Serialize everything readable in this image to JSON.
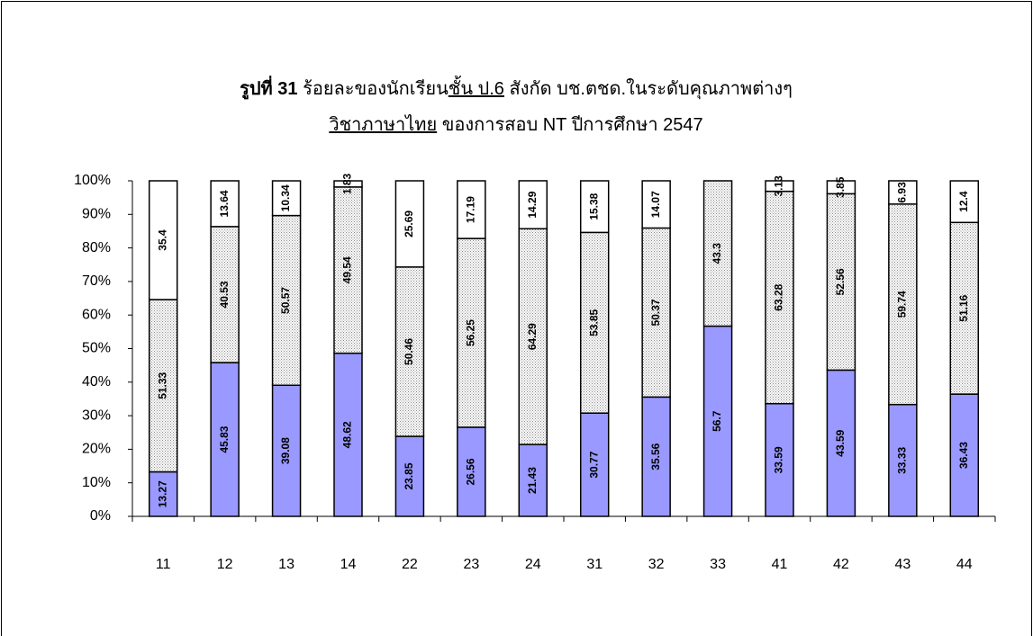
{
  "chart_data": {
    "type": "stacked_bar",
    "title_lines": [
      [
        {
          "text": "รูปที่ 31",
          "bold": true
        },
        {
          "text": " ร้อยละของนักเรียน"
        },
        {
          "text": "ชั้น ป.6",
          "underline": true
        },
        {
          "text": "  สังกัด บช.ตชด.ในระดับคุณภาพต่างๆ"
        }
      ],
      [
        {
          "text": "วิชาภาษาไทย",
          "underline": true
        },
        {
          "text": " ของการสอบ NT  ปีการศึกษา 2547"
        }
      ]
    ],
    "categories": [
      "11",
      "12",
      "13",
      "14",
      "22",
      "23",
      "24",
      "31",
      "32",
      "33",
      "41",
      "42",
      "43",
      "44"
    ],
    "series": [
      {
        "color": "#9999ff",
        "values": [
          13.27,
          45.83,
          39.08,
          48.62,
          23.85,
          26.56,
          21.43,
          30.77,
          35.56,
          56.7,
          33.59,
          43.59,
          33.33,
          36.43
        ]
      },
      {
        "color": "#bdbdbd",
        "pattern": "dots",
        "values": [
          51.33,
          40.53,
          50.57,
          49.54,
          50.46,
          56.25,
          64.29,
          53.85,
          50.37,
          43.3,
          63.28,
          52.56,
          59.74,
          51.16
        ]
      },
      {
        "color": "#ffffff",
        "values": [
          35.4,
          13.64,
          10.34,
          1.83,
          25.69,
          17.19,
          14.29,
          15.38,
          14.07,
          null,
          3.13,
          3.85,
          6.93,
          12.4
        ]
      }
    ],
    "ylim": [
      0,
      100
    ],
    "yticks": [
      {
        "value": 0,
        "label": "0%"
      },
      {
        "value": 10,
        "label": "10%"
      },
      {
        "value": 20,
        "label": "20%"
      },
      {
        "value": 30,
        "label": "30%"
      },
      {
        "value": 40,
        "label": "40%"
      },
      {
        "value": 50,
        "label": "50%"
      },
      {
        "value": 60,
        "label": "60%"
      },
      {
        "value": 70,
        "label": "70%"
      },
      {
        "value": 80,
        "label": "80%"
      },
      {
        "value": 90,
        "label": "90%"
      },
      {
        "value": 100,
        "label": "100%"
      }
    ]
  }
}
